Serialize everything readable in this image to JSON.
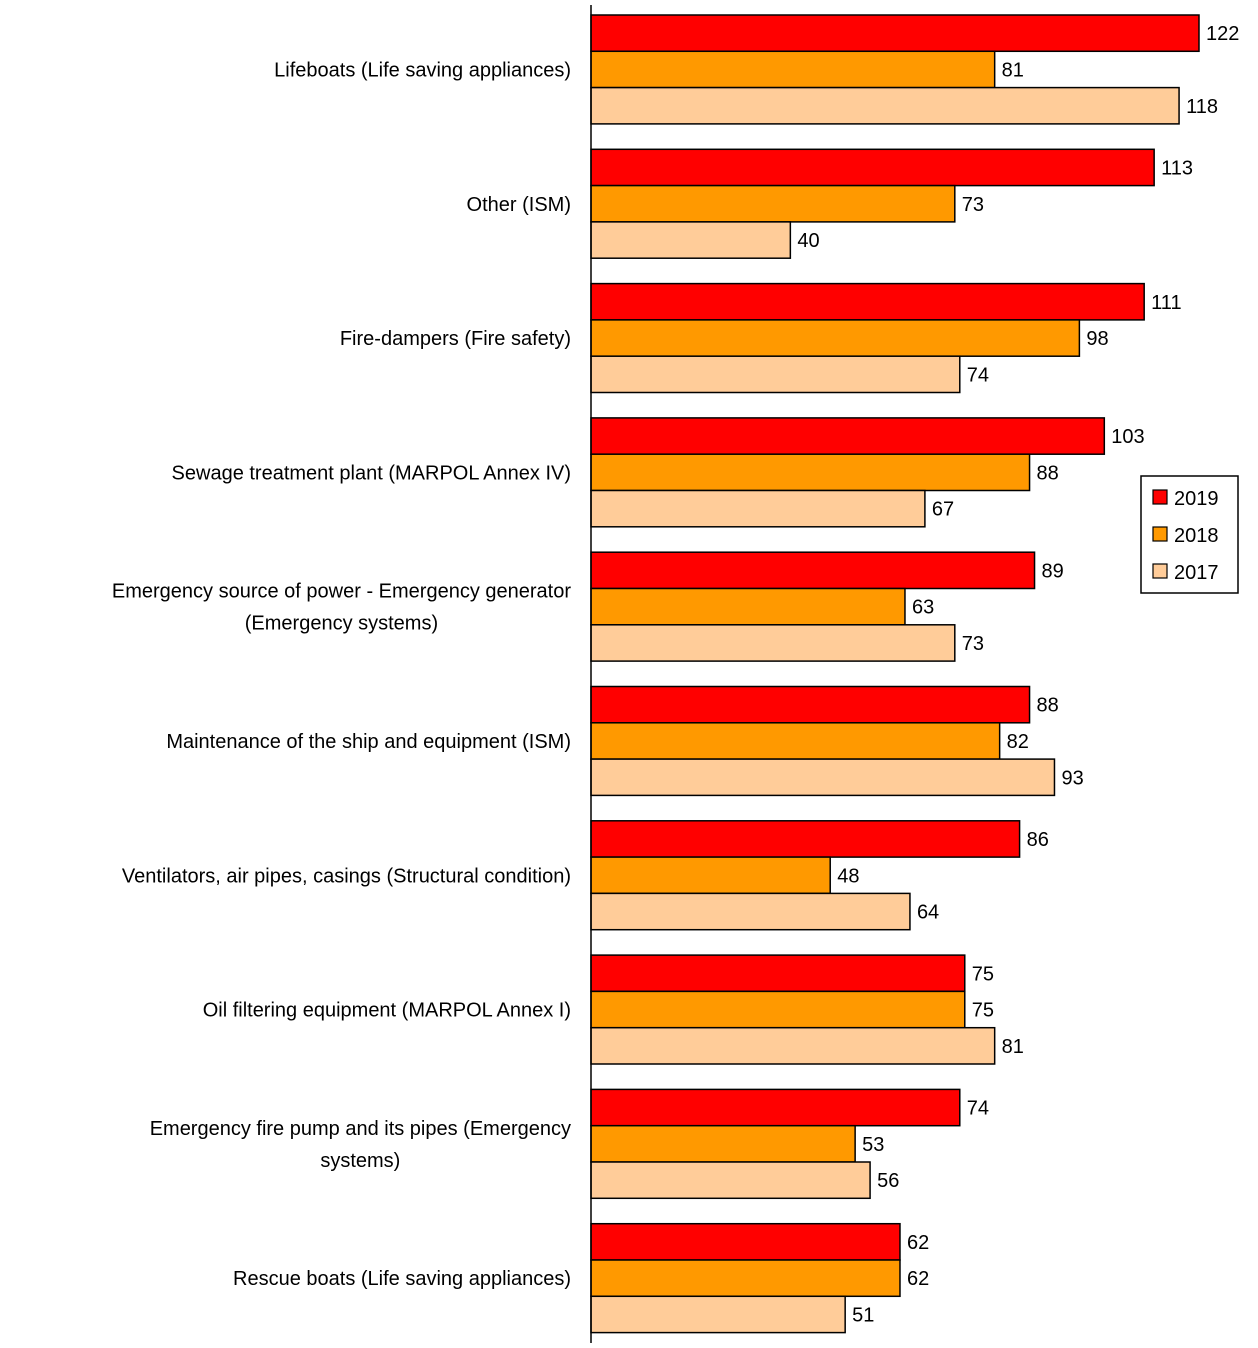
{
  "chart_data": {
    "type": "bar",
    "orientation": "horizontal",
    "categories": [
      [
        "Lifeboats (Life saving appliances)"
      ],
      [
        "Other (ISM)"
      ],
      [
        "Fire-dampers (Fire safety)"
      ],
      [
        "Sewage treatment plant (MARPOL Annex IV)"
      ],
      [
        "Emergency source of power - Emergency generator",
        "(Emergency systems)"
      ],
      [
        "Maintenance of the ship and equipment (ISM)"
      ],
      [
        "Ventilators, air pipes, casings (Structural condition)"
      ],
      [
        "Oil filtering equipment (MARPOL Annex I)"
      ],
      [
        "Emergency fire pump and its pipes (Emergency",
        "systems)"
      ],
      [
        "Rescue boats (Life saving appliances)"
      ]
    ],
    "series": [
      {
        "name": "2019",
        "color": "#ff0000",
        "values": [
          122,
          113,
          111,
          103,
          89,
          88,
          86,
          75,
          74,
          62
        ]
      },
      {
        "name": "2018",
        "color": "#ff9900",
        "values": [
          81,
          73,
          98,
          88,
          63,
          82,
          48,
          75,
          53,
          62
        ]
      },
      {
        "name": "2017",
        "color": "#ffcc99",
        "values": [
          118,
          40,
          74,
          67,
          73,
          93,
          64,
          81,
          56,
          51
        ]
      }
    ],
    "xlim": [
      0,
      125
    ],
    "grid": false,
    "legend": "right",
    "data_labels": true
  }
}
